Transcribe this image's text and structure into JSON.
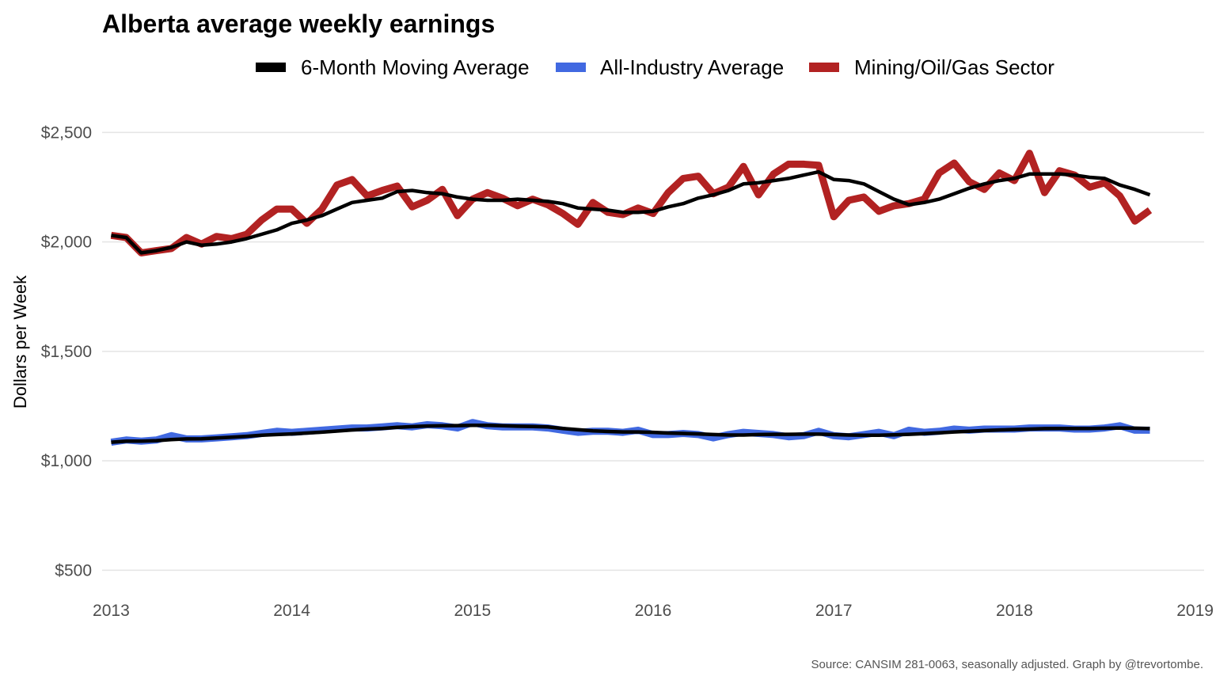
{
  "chart_data": {
    "type": "line",
    "title": "Alberta average weekly earnings",
    "ylabel": "Dollars per Week",
    "xlabel": "",
    "caption": "Source: CANSIM 281-0063, seasonally adjusted. Graph by @trevortombe.",
    "legend_position": "top",
    "grid": true,
    "xlim": [
      2012.95,
      2019.05
    ],
    "ylim": [
      400,
      2700
    ],
    "x_ticks": [
      2013,
      2014,
      2015,
      2016,
      2017,
      2018,
      2019
    ],
    "x_tick_labels": [
      "2013",
      "2014",
      "2015",
      "2016",
      "2017",
      "2018",
      "2019"
    ],
    "y_ticks": [
      500,
      1000,
      1500,
      2000,
      2500
    ],
    "y_tick_labels": [
      "$500",
      "$1,000",
      "$1,500",
      "$2,000",
      "$2,500"
    ],
    "legend": [
      {
        "name": "6-Month Moving Average",
        "color": "#000000"
      },
      {
        "name": "All-Industry Average",
        "color": "#4169e1"
      },
      {
        "name": "Mining/Oil/Gas Sector",
        "color": "#b22222"
      }
    ],
    "series": [
      {
        "key": "mining",
        "name": "Mining/Oil/Gas Sector",
        "color": "#b22222",
        "x_start": 2013.0,
        "x_step": 0.08333,
        "values": [
          2030,
          2020,
          1950,
          1960,
          1970,
          2020,
          1990,
          2025,
          2015,
          2035,
          2100,
          2150,
          2150,
          2085,
          2150,
          2260,
          2285,
          2210,
          2235,
          2255,
          2160,
          2190,
          2240,
          2120,
          2195,
          2225,
          2200,
          2165,
          2195,
          2170,
          2130,
          2080,
          2180,
          2135,
          2125,
          2155,
          2130,
          2225,
          2290,
          2300,
          2220,
          2250,
          2345,
          2215,
          2310,
          2355,
          2355,
          2350,
          2115,
          2190,
          2205,
          2140,
          2165,
          2175,
          2195,
          2315,
          2360,
          2275,
          2240,
          2315,
          2280,
          2405,
          2225,
          2325,
          2305,
          2250,
          2270,
          2210,
          2095,
          2145
        ]
      },
      {
        "key": "ma_mining",
        "name": "6-Month Moving Average",
        "color": "#000000",
        "x_start": 2013.0,
        "x_step": 0.08333,
        "values": [
          2030,
          2020,
          1950,
          1960,
          1975,
          2000,
          1985,
          1990,
          2000,
          2015,
          2035,
          2055,
          2085,
          2100,
          2120,
          2150,
          2180,
          2190,
          2200,
          2230,
          2235,
          2225,
          2220,
          2205,
          2195,
          2190,
          2190,
          2195,
          2190,
          2185,
          2175,
          2155,
          2150,
          2145,
          2135,
          2135,
          2140,
          2160,
          2175,
          2200,
          2215,
          2235,
          2265,
          2270,
          2280,
          2290,
          2305,
          2320,
          2285,
          2280,
          2265,
          2230,
          2195,
          2170,
          2180,
          2195,
          2220,
          2245,
          2265,
          2280,
          2290,
          2310,
          2310,
          2310,
          2305,
          2295,
          2290,
          2260,
          2240,
          2215
        ]
      },
      {
        "key": "all_industry",
        "name": "All-Industry Average",
        "color": "#4169e1",
        "x_start": 2013.0,
        "x_step": 0.08333,
        "values": [
          1085,
          1095,
          1090,
          1095,
          1115,
          1100,
          1100,
          1105,
          1110,
          1115,
          1125,
          1135,
          1130,
          1135,
          1140,
          1145,
          1150,
          1150,
          1155,
          1160,
          1155,
          1165,
          1160,
          1150,
          1175,
          1160,
          1155,
          1155,
          1155,
          1150,
          1140,
          1130,
          1135,
          1135,
          1130,
          1140,
          1120,
          1120,
          1125,
          1120,
          1105,
          1120,
          1130,
          1125,
          1120,
          1110,
          1115,
          1135,
          1115,
          1110,
          1120,
          1130,
          1115,
          1140,
          1130,
          1135,
          1145,
          1140,
          1145,
          1145,
          1145,
          1150,
          1150,
          1150,
          1145,
          1145,
          1150,
          1160,
          1140,
          1140
        ]
      },
      {
        "key": "ma_all",
        "name": "6-Month Moving Average",
        "color": "#000000",
        "x_start": 2013.0,
        "x_step": 0.08333,
        "values": [
          1085,
          1090,
          1090,
          1092,
          1097,
          1100,
          1101,
          1104,
          1108,
          1112,
          1117,
          1120,
          1123,
          1127,
          1131,
          1136,
          1141,
          1145,
          1148,
          1153,
          1156,
          1159,
          1160,
          1161,
          1162,
          1162,
          1160,
          1158,
          1157,
          1155,
          1148,
          1142,
          1137,
          1134,
          1132,
          1132,
          1130,
          1127,
          1125,
          1123,
          1120,
          1118,
          1118,
          1120,
          1121,
          1121,
          1122,
          1122,
          1120,
          1118,
          1117,
          1117,
          1119,
          1121,
          1124,
          1128,
          1132,
          1135,
          1138,
          1141,
          1143,
          1145,
          1147,
          1148,
          1148,
          1148,
          1149,
          1150,
          1149,
          1147
        ]
      }
    ]
  }
}
